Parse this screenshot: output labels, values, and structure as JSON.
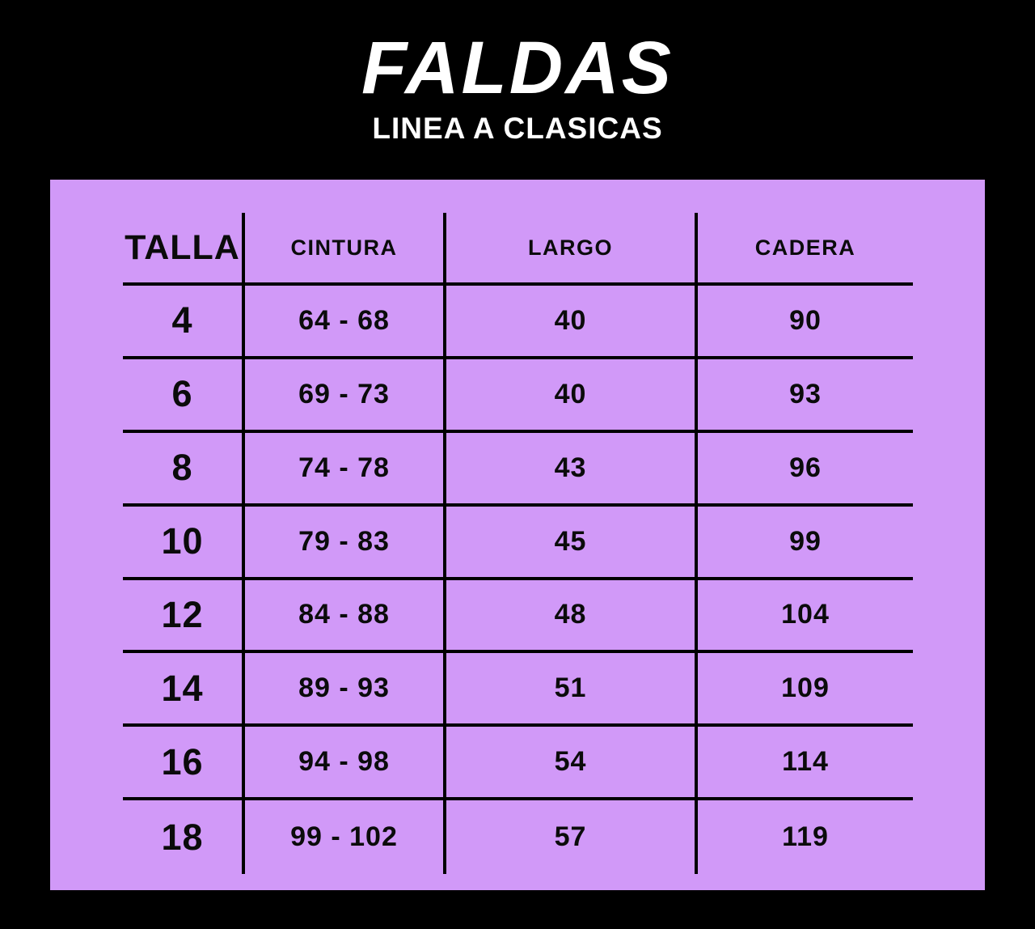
{
  "colors": {
    "background": "#000000",
    "panel": "#d199f8",
    "grid_lines": "#000000",
    "table_text": "#0b0b0b",
    "title_text": "#ffffff"
  },
  "chart_data": {
    "type": "table",
    "title": "FALDAS",
    "subtitle": "LINEA A CLASICAS",
    "columns": [
      "TALLA",
      "CINTURA",
      "LARGO",
      "CADERA"
    ],
    "rows": [
      [
        "4",
        "64 - 68",
        "40",
        "90"
      ],
      [
        "6",
        "69 - 73",
        "40",
        "93"
      ],
      [
        "8",
        "74 - 78",
        "43",
        "96"
      ],
      [
        "10",
        "79 - 83",
        "45",
        "99"
      ],
      [
        "12",
        "84 - 88",
        "48",
        "104"
      ],
      [
        "14",
        "89 - 93",
        "51",
        "109"
      ],
      [
        "16",
        "94 - 98",
        "54",
        "114"
      ],
      [
        "18",
        "99 - 102",
        "57",
        "119"
      ]
    ]
  }
}
